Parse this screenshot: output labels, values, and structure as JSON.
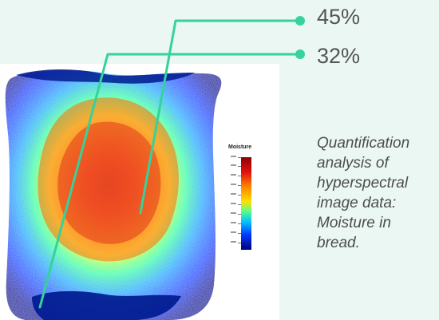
{
  "callouts": [
    {
      "value": "45%",
      "color": "#35d29b"
    },
    {
      "value": "32%",
      "color": "#35d29b"
    }
  ],
  "caption": "Quantification analysis of hyperspectral image data: Moisture in bread.",
  "heatmap": {
    "legend_title": "Moisture",
    "colormap": [
      "#8f0000",
      "#e01010",
      "#ff8400",
      "#ffe000",
      "#5cff88",
      "#00c2ff",
      "#0038ff",
      "#00007a"
    ],
    "background": "#eaf7f2"
  }
}
